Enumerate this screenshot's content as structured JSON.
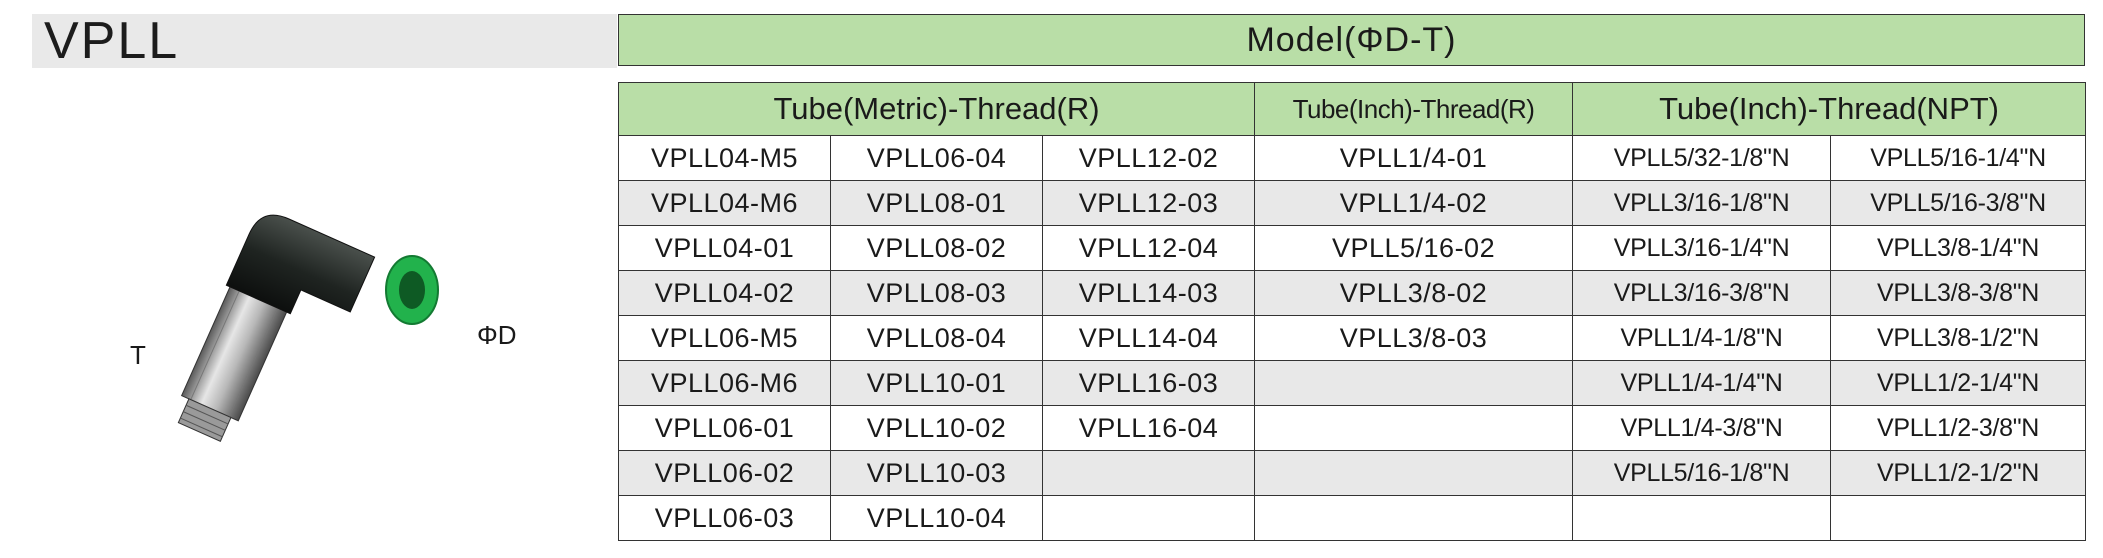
{
  "title": "VPLL",
  "labels": {
    "thread": "T",
    "diameter": "ΦD"
  },
  "table": {
    "model_header": "Model(ΦD-T)",
    "group_headers": [
      "Tube(Metric)-Thread(R)",
      "Tube(Inch)-Thread(R)",
      "Tube(Inch)-Thread(NPT)"
    ],
    "rows": [
      [
        "VPLL04-M5",
        "VPLL06-04",
        "VPLL12-02",
        "VPLL1/4-01",
        "VPLL5/32-1/8\"N",
        "VPLL5/16-1/4\"N"
      ],
      [
        "VPLL04-M6",
        "VPLL08-01",
        "VPLL12-03",
        "VPLL1/4-02",
        "VPLL3/16-1/8\"N",
        "VPLL5/16-3/8\"N"
      ],
      [
        "VPLL04-01",
        "VPLL08-02",
        "VPLL12-04",
        "VPLL5/16-02",
        "VPLL3/16-1/4\"N",
        "VPLL3/8-1/4\"N"
      ],
      [
        "VPLL04-02",
        "VPLL08-03",
        "VPLL14-03",
        "VPLL3/8-02",
        "VPLL3/16-3/8\"N",
        "VPLL3/8-3/8\"N"
      ],
      [
        "VPLL06-M5",
        "VPLL08-04",
        "VPLL14-04",
        "VPLL3/8-03",
        "VPLL1/4-1/8\"N",
        "VPLL3/8-1/2\"N"
      ],
      [
        "VPLL06-M6",
        "VPLL10-01",
        "VPLL16-03",
        "",
        "VPLL1/4-1/4\"N",
        "VPLL1/2-1/4\"N"
      ],
      [
        "VPLL06-01",
        "VPLL10-02",
        "VPLL16-04",
        "",
        "VPLL1/4-3/8\"N",
        "VPLL1/2-3/8\"N"
      ],
      [
        "VPLL06-02",
        "VPLL10-03",
        "",
        "",
        "VPLL5/16-1/8\"N",
        "VPLL1/2-1/2\"N"
      ],
      [
        "VPLL06-03",
        "VPLL10-04",
        "",
        "",
        "",
        ""
      ]
    ]
  },
  "colors": {
    "header_green": "#b9dea7",
    "row_shade": "#e8e8e8",
    "title_bar": "#e9e9e9",
    "fitting_green": "#22b24c",
    "fitting_body": "#1f2421"
  }
}
